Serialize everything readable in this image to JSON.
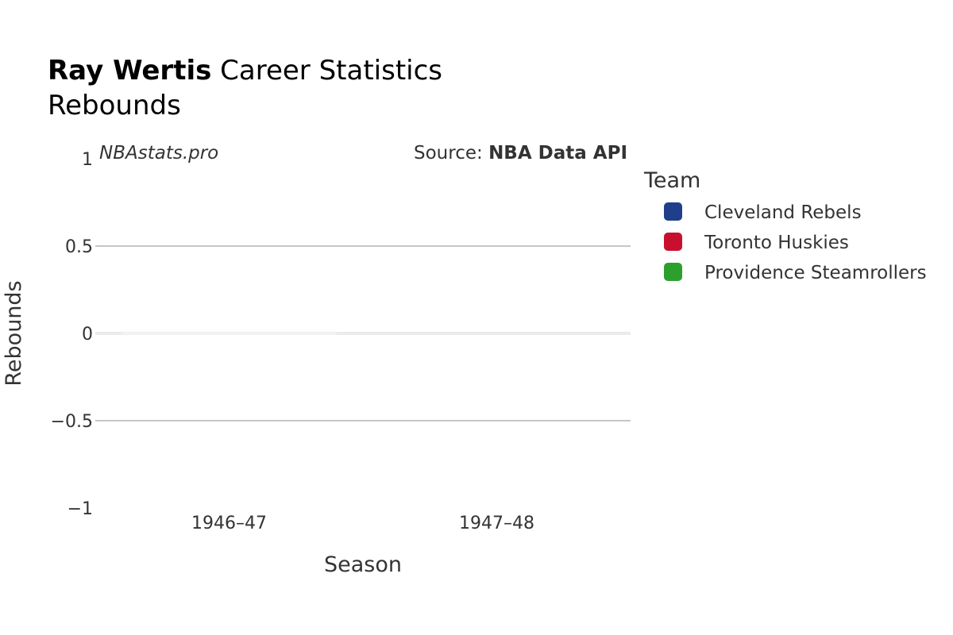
{
  "chart_data": {
    "type": "bar",
    "title_bold": "Ray Wertis",
    "title_rest": " Career Statistics",
    "subtitle": "Rebounds",
    "xlabel": "Season",
    "ylabel": "Rebounds",
    "categories": [
      "1946–47",
      "1947–48"
    ],
    "ylim": [
      -1,
      1
    ],
    "yticks": [
      {
        "value": 1,
        "label": "1"
      },
      {
        "value": 0.5,
        "label": "0.5"
      },
      {
        "value": 0,
        "label": "0"
      },
      {
        "value": -0.5,
        "label": "−0.5"
      },
      {
        "value": -1,
        "label": "−1"
      }
    ],
    "grid": true,
    "series": [
      {
        "name": "Cleveland Rebels",
        "color": "#1f3f8a",
        "values": [
          0,
          null
        ]
      },
      {
        "name": "Toronto Huskies",
        "color": "#c8102e",
        "values": [
          null,
          null
        ]
      },
      {
        "name": "Providence Steamrollers",
        "color": "#2ca02c",
        "values": [
          null,
          null
        ]
      }
    ],
    "legend_title": "Team",
    "legend_position": "right",
    "annotation_left": "NBAstats.pro",
    "annotation_right_prefix": "Source: ",
    "annotation_right_bold": "NBA Data API"
  }
}
